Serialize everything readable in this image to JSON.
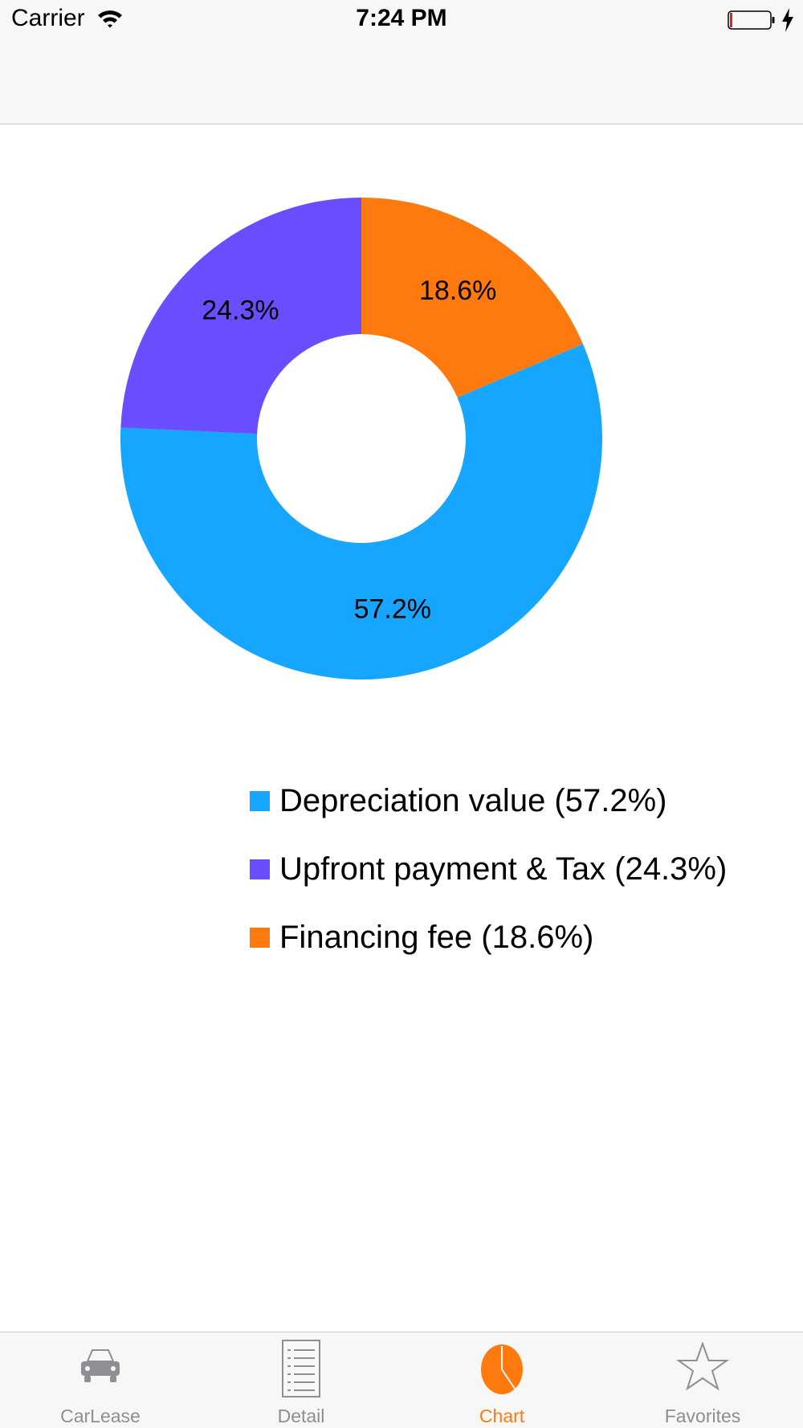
{
  "status_bar": {
    "carrier": "Carrier",
    "time": "7:24 PM"
  },
  "colors": {
    "depreciation": "#16a5ff",
    "upfront": "#6a4dff",
    "financing": "#ff7a0e",
    "tab_active": "#ff7a0e",
    "tab_inactive": "#8e8e93"
  },
  "chart_data": {
    "type": "pie",
    "variant": "donut",
    "start_angle_deg": 0,
    "direction": "clockwise",
    "slices": [
      {
        "label": "Financing fee",
        "value": 18.6,
        "value_label": "18.6%",
        "color": "#ff7a0e"
      },
      {
        "label": "Depreciation value",
        "value": 57.2,
        "value_label": "57.2%",
        "color": "#16a5ff"
      },
      {
        "label": "Upfront payment & Tax",
        "value": 24.3,
        "value_label": "24.3%",
        "color": "#6a4dff"
      }
    ]
  },
  "legend": {
    "items": [
      {
        "label": "Depreciation value (57.2%)",
        "color": "#16a5ff"
      },
      {
        "label": "Upfront payment & Tax (24.3%)",
        "color": "#6a4dff"
      },
      {
        "label": "Financing fee (18.6%)",
        "color": "#ff7a0e"
      }
    ]
  },
  "tabbar": {
    "tabs": [
      {
        "label": "CarLease",
        "icon": "car-icon",
        "active": false
      },
      {
        "label": "Detail",
        "icon": "list-icon",
        "active": false
      },
      {
        "label": "Chart",
        "icon": "pie-chart-icon",
        "active": true
      },
      {
        "label": "Favorites",
        "icon": "star-icon",
        "active": false
      }
    ]
  }
}
